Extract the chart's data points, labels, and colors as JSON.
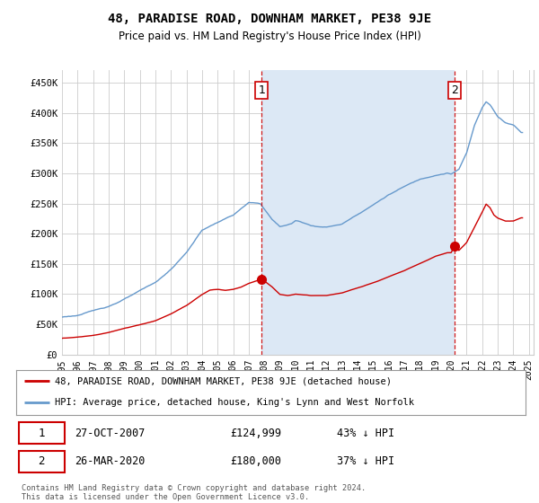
{
  "title": "48, PARADISE ROAD, DOWNHAM MARKET, PE38 9JE",
  "subtitle": "Price paid vs. HM Land Registry's House Price Index (HPI)",
  "ylabel_ticks": [
    "£0",
    "£50K",
    "£100K",
    "£150K",
    "£200K",
    "£250K",
    "£300K",
    "£350K",
    "£400K",
    "£450K"
  ],
  "ytick_values": [
    0,
    50000,
    100000,
    150000,
    200000,
    250000,
    300000,
    350000,
    400000,
    450000
  ],
  "ylim": [
    0,
    470000
  ],
  "xlim_start": 1995.0,
  "xlim_end": 2025.3,
  "ann1_x": 2007.82,
  "ann1_y": 124999,
  "ann2_x": 2020.23,
  "ann2_y": 180000,
  "red_color": "#cc0000",
  "blue_color": "#6699cc",
  "fill_color": "#dce8f5",
  "legend_label_red": "48, PARADISE ROAD, DOWNHAM MARKET, PE38 9JE (detached house)",
  "legend_label_blue": "HPI: Average price, detached house, King's Lynn and West Norfolk",
  "table_row1": [
    "1",
    "27-OCT-2007",
    "£124,999",
    "43% ↓ HPI"
  ],
  "table_row2": [
    "2",
    "26-MAR-2020",
    "£180,000",
    "37% ↓ HPI"
  ],
  "footer": "Contains HM Land Registry data © Crown copyright and database right 2024.\nThis data is licensed under the Open Government Licence v3.0.",
  "background_color": "#ffffff",
  "grid_color": "#cccccc"
}
